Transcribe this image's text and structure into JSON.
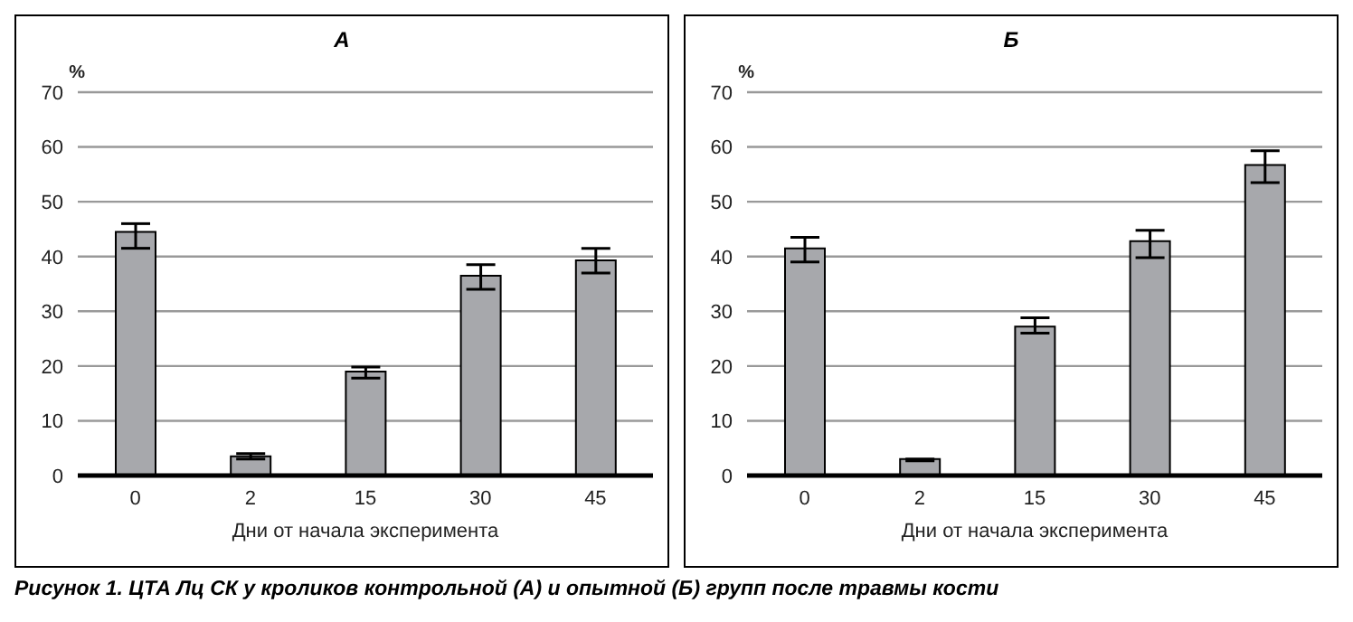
{
  "chart_data": [
    {
      "type": "bar",
      "title": "А",
      "xlabel": "Дни от начала эксперимента",
      "ylabel": "%",
      "categories": [
        "0",
        "2",
        "15",
        "30",
        "45"
      ],
      "values": [
        44.5,
        3.5,
        19,
        36.5,
        39.3
      ],
      "errors": [
        [
          41.5,
          46
        ],
        [
          3,
          4
        ],
        [
          17.8,
          19.8
        ],
        [
          34,
          38.5
        ],
        [
          37,
          41.5
        ]
      ],
      "color": "#a7a8ac",
      "ylim": [
        0,
        70
      ],
      "yticks": [
        0,
        10,
        20,
        30,
        40,
        50,
        60,
        70
      ],
      "grid": "y",
      "annotations": [
        "Рисунок 1. ЦТА Лц СК у кроликов контрольной (А) и опытной (Б) групп после травмы кости"
      ]
    },
    {
      "type": "bar",
      "title": "Б",
      "xlabel": "Дни от начала эксперимента",
      "ylabel": "%",
      "categories": [
        "0",
        "2",
        "15",
        "30",
        "45"
      ],
      "values": [
        41.5,
        3,
        27.2,
        42.8,
        56.7
      ],
      "errors": [
        [
          39,
          43.5
        ],
        [
          2.7,
          3
        ],
        [
          26,
          28.8
        ],
        [
          39.8,
          44.8
        ],
        [
          53.5,
          59.3
        ]
      ],
      "color": "#a7a8ac",
      "ylim": [
        0,
        70
      ],
      "yticks": [
        0,
        10,
        20,
        30,
        40,
        50,
        60,
        70
      ],
      "grid": "y"
    }
  ]
}
